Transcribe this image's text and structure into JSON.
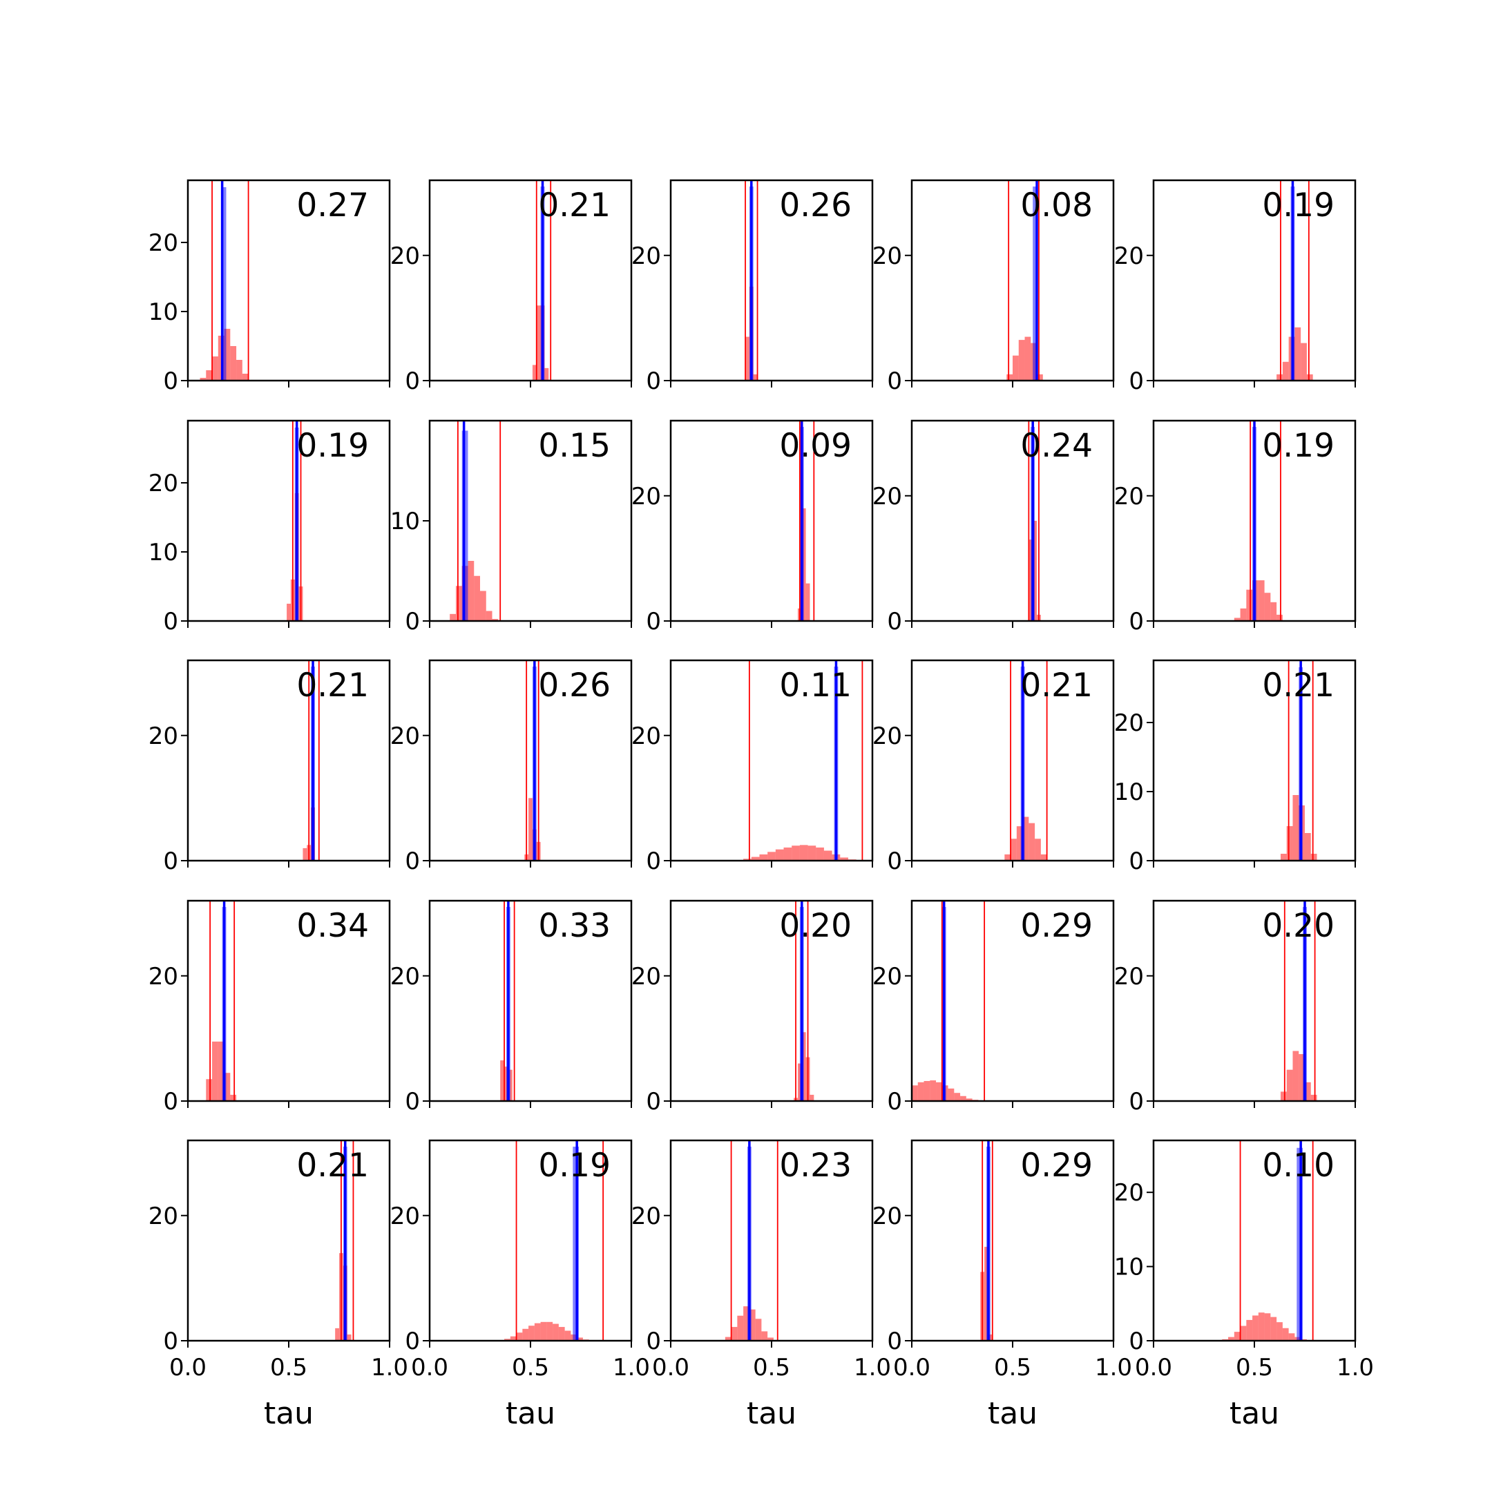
{
  "chart_data": {
    "type": "histogram-grid",
    "rows": 5,
    "cols": 5,
    "xlabel": "tau",
    "xlim": [
      0,
      1
    ],
    "xticks": [
      0.0,
      0.5,
      1.0
    ],
    "xtick_labels": [
      "0.0",
      "0.5",
      "1.0"
    ],
    "colors": {
      "prior_hist": "#ff0000",
      "posterior_hist": "#0000ff",
      "truth_line": "#0000ff",
      "interval_line": "#ff0000"
    },
    "panels": [
      {
        "label": "0.27",
        "ymax": 29,
        "yticks": [
          0,
          10,
          20
        ],
        "lo": 0.12,
        "hi": 0.3,
        "truth": 0.17,
        "blue": [
          0.17,
          0.19,
          28
        ],
        "hist": {
          "start": 0.06,
          "width": 0.03,
          "values": [
            0.4,
            1.5,
            3.5,
            6.5,
            7.5,
            5,
            3,
            1
          ]
        }
      },
      {
        "label": "0.21",
        "ymax": 32,
        "yticks": [
          0,
          20
        ],
        "lo": 0.53,
        "hi": 0.6,
        "truth": 0.56,
        "blue": [
          0.55,
          0.57,
          31
        ],
        "hist": {
          "start": 0.51,
          "width": 0.02,
          "values": [
            2.5,
            12,
            12,
            2
          ]
        }
      },
      {
        "label": "0.26",
        "ymax": 32,
        "yticks": [
          0,
          20
        ],
        "lo": 0.37,
        "hi": 0.43,
        "truth": 0.4,
        "blue": [
          0.39,
          0.41,
          31
        ],
        "hist": {
          "start": 0.37,
          "width": 0.02,
          "values": [
            7,
            15,
            1
          ]
        }
      },
      {
        "label": "0.08",
        "ymax": 32,
        "yticks": [
          0,
          20
        ],
        "lo": 0.48,
        "hi": 0.63,
        "truth": 0.62,
        "blue": [
          0.6,
          0.62,
          31
        ],
        "hist": {
          "start": 0.47,
          "width": 0.03,
          "values": [
            1,
            4,
            6.5,
            7,
            6,
            1
          ]
        }
      },
      {
        "label": "0.19",
        "ymax": 32,
        "yticks": [
          0,
          20
        ],
        "lo": 0.63,
        "hi": 0.77,
        "truth": 0.69,
        "blue": [
          0.68,
          0.7,
          31
        ],
        "hist": {
          "start": 0.61,
          "width": 0.03,
          "values": [
            1,
            3,
            7,
            8.5,
            6,
            1
          ]
        }
      },
      {
        "label": "0.19",
        "ymax": 29,
        "yticks": [
          0,
          10,
          20
        ],
        "lo": 0.52,
        "hi": 0.56,
        "truth": 0.54,
        "blue": [
          0.53,
          0.55,
          28
        ],
        "hist": {
          "start": 0.49,
          "width": 0.02,
          "values": [
            2.5,
            6,
            18.5,
            5
          ]
        }
      },
      {
        "label": "0.15",
        "ymax": 20,
        "yticks": [
          0,
          10
        ],
        "lo": 0.14,
        "hi": 0.35,
        "truth": 0.17,
        "blue": [
          0.16,
          0.19,
          19
        ],
        "hist": {
          "start": 0.1,
          "width": 0.03,
          "values": [
            0.7,
            3.5,
            5.5,
            6,
            4.5,
            3,
            1,
            0.2
          ]
        }
      },
      {
        "label": "0.09",
        "ymax": 32,
        "yticks": [
          0,
          20
        ],
        "lo": 0.64,
        "hi": 0.71,
        "truth": 0.65,
        "blue": [
          0.64,
          0.66,
          31
        ],
        "hist": {
          "start": 0.63,
          "width": 0.02,
          "values": [
            2,
            18,
            6
          ]
        }
      },
      {
        "label": "0.24",
        "ymax": 32,
        "yticks": [
          0,
          20
        ],
        "lo": 0.58,
        "hi": 0.63,
        "truth": 0.6,
        "blue": [
          0.59,
          0.61,
          31
        ],
        "hist": {
          "start": 0.58,
          "width": 0.02,
          "values": [
            13,
            16,
            1
          ]
        }
      },
      {
        "label": "0.19",
        "ymax": 32,
        "yticks": [
          0,
          20
        ],
        "lo": 0.48,
        "hi": 0.63,
        "truth": 0.5,
        "blue": [
          0.49,
          0.51,
          31
        ],
        "hist": {
          "start": 0.4,
          "width": 0.03,
          "values": [
            0.5,
            2,
            5,
            6.5,
            6.5,
            4.5,
            3,
            1
          ]
        }
      },
      {
        "label": "0.21",
        "ymax": 32,
        "yticks": [
          0,
          20
        ],
        "lo": 0.6,
        "hi": 0.65,
        "truth": 0.62,
        "blue": [
          0.61,
          0.63,
          31
        ],
        "hist": {
          "start": 0.57,
          "width": 0.02,
          "values": [
            2,
            2.5,
            8.5
          ]
        }
      },
      {
        "label": "0.26",
        "ymax": 32,
        "yticks": [
          0,
          20
        ],
        "lo": 0.48,
        "hi": 0.54,
        "truth": 0.52,
        "blue": [
          0.51,
          0.53,
          31
        ],
        "hist": {
          "start": 0.47,
          "width": 0.02,
          "values": [
            1,
            10,
            5,
            3
          ]
        }
      },
      {
        "label": "0.11",
        "ymax": 32,
        "yticks": [
          0,
          20
        ],
        "lo": 0.39,
        "hi": 0.95,
        "truth": 0.82,
        "blue": [
          0.81,
          0.83,
          31
        ],
        "hist": {
          "start": 0.32,
          "width": 0.04,
          "values": [
            0.1,
            0.3,
            0.6,
            1.0,
            1.4,
            1.8,
            2.1,
            2.4,
            2.5,
            2.4,
            2.1,
            1.6,
            1.0,
            0.5,
            0.2,
            0.1
          ]
        }
      },
      {
        "label": "0.21",
        "ymax": 32,
        "yticks": [
          0,
          20
        ],
        "lo": 0.49,
        "hi": 0.67,
        "truth": 0.55,
        "blue": [
          0.54,
          0.56,
          31
        ],
        "hist": {
          "start": 0.46,
          "width": 0.03,
          "values": [
            1,
            3.5,
            5.5,
            7,
            6,
            3.5,
            1
          ]
        }
      },
      {
        "label": "0.21",
        "ymax": 29,
        "yticks": [
          0,
          10,
          20
        ],
        "lo": 0.67,
        "hi": 0.79,
        "truth": 0.73,
        "blue": [
          0.72,
          0.74,
          28
        ],
        "hist": {
          "start": 0.63,
          "width": 0.03,
          "values": [
            1,
            5,
            9.5,
            8,
            4,
            1
          ]
        }
      },
      {
        "label": "0.34",
        "ymax": 32,
        "yticks": [
          0,
          20
        ],
        "lo": 0.11,
        "hi": 0.23,
        "truth": 0.18,
        "blue": [
          0.17,
          0.19,
          31
        ],
        "hist": {
          "start": 0.09,
          "width": 0.03,
          "values": [
            3.5,
            9.5,
            9.5,
            4.5,
            1
          ]
        }
      },
      {
        "label": "0.33",
        "ymax": 32,
        "yticks": [
          0,
          20
        ],
        "lo": 0.37,
        "hi": 0.42,
        "truth": 0.39,
        "blue": [
          0.38,
          0.4,
          31
        ],
        "hist": {
          "start": 0.35,
          "width": 0.02,
          "values": [
            6.5,
            5.5,
            5
          ]
        }
      },
      {
        "label": "0.20",
        "ymax": 32,
        "yticks": [
          0,
          20
        ],
        "lo": 0.62,
        "hi": 0.68,
        "truth": 0.65,
        "blue": [
          0.64,
          0.66,
          31
        ],
        "hist": {
          "start": 0.61,
          "width": 0.02,
          "values": [
            0.5,
            6,
            11,
            7,
            1
          ]
        }
      },
      {
        "label": "0.29",
        "ymax": 32,
        "yticks": [
          0,
          20
        ],
        "lo": 0.15,
        "hi": 0.36,
        "truth": 0.16,
        "blue": [
          0.15,
          0.17,
          31
        ],
        "hist": {
          "start": 0.0,
          "width": 0.03,
          "values": [
            2.5,
            3,
            3.2,
            3.3,
            3,
            2.5,
            2,
            1.3,
            0.8,
            0.4,
            0.2,
            0.1,
            0.05
          ]
        }
      },
      {
        "label": "0.20",
        "ymax": 32,
        "yticks": [
          0,
          20
        ],
        "lo": 0.65,
        "hi": 0.8,
        "truth": 0.75,
        "blue": [
          0.74,
          0.76,
          31
        ],
        "hist": {
          "start": 0.63,
          "width": 0.03,
          "values": [
            1.5,
            5,
            8,
            7.5,
            3,
            1
          ]
        }
      },
      {
        "label": "0.21",
        "ymax": 32,
        "yticks": [
          0,
          20
        ],
        "lo": 0.76,
        "hi": 0.82,
        "truth": 0.78,
        "blue": [
          0.77,
          0.79,
          31
        ],
        "hist": {
          "start": 0.73,
          "width": 0.02,
          "values": [
            2,
            14,
            12,
            1
          ]
        }
      },
      {
        "label": "0.19",
        "ymax": 32,
        "yticks": [
          0,
          20
        ],
        "lo": 0.43,
        "hi": 0.86,
        "truth": 0.73,
        "blue": [
          0.71,
          0.74,
          31
        ],
        "hist": {
          "start": 0.34,
          "width": 0.03,
          "values": [
            0.1,
            0.3,
            0.7,
            1.3,
            1.9,
            2.4,
            2.8,
            3,
            3,
            2.7,
            2.2,
            1.6,
            1,
            0.5,
            0.2
          ]
        }
      },
      {
        "label": "0.23",
        "ymax": 32,
        "yticks": [
          0,
          20
        ],
        "lo": 0.3,
        "hi": 0.53,
        "truth": 0.39,
        "blue": [
          0.38,
          0.4,
          31
        ],
        "hist": {
          "start": 0.27,
          "width": 0.03,
          "values": [
            0.6,
            2.2,
            4,
            5.5,
            5,
            3.5,
            1.5,
            0.5
          ]
        }
      },
      {
        "label": "0.29",
        "ymax": 32,
        "yticks": [
          0,
          20
        ],
        "lo": 0.35,
        "hi": 0.4,
        "truth": 0.38,
        "blue": [
          0.37,
          0.39,
          31
        ],
        "hist": {
          "start": 0.34,
          "width": 0.02,
          "values": [
            11,
            15,
            1
          ]
        }
      },
      {
        "label": "0.10",
        "ymax": 27,
        "yticks": [
          0,
          10,
          20
        ],
        "lo": 0.43,
        "hi": 0.79,
        "truth": 0.73,
        "blue": [
          0.71,
          0.74,
          26
        ],
        "hist": {
          "start": 0.34,
          "width": 0.03,
          "values": [
            0.2,
            0.5,
            1.2,
            2,
            2.8,
            3.4,
            3.8,
            3.7,
            3.2,
            2.5,
            1.7,
            1,
            0.5,
            0.2
          ]
        }
      }
    ]
  }
}
